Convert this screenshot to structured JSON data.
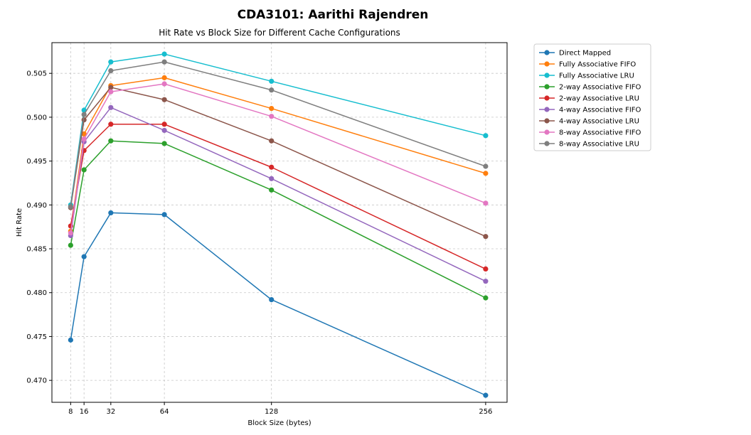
{
  "chart_data": {
    "type": "line",
    "title": "CDA3101: Aarithi Rajendren",
    "subtitle": "Hit Rate vs Block Size for Different Cache Configurations",
    "xlabel": "Block Size (bytes)",
    "ylabel": "Hit Rate",
    "x": [
      8,
      16,
      32,
      64,
      128,
      256
    ],
    "x_ticks": [
      "8",
      "16",
      "32",
      "64",
      "128",
      "256"
    ],
    "xlim": [
      -3.2,
      268.8
    ],
    "ylim": [
      0.4675,
      0.5085
    ],
    "y_ticks": [
      "0.470",
      "0.475",
      "0.480",
      "0.485",
      "0.490",
      "0.495",
      "0.500",
      "0.505"
    ],
    "y_tick_values": [
      0.47,
      0.475,
      0.48,
      0.485,
      0.49,
      0.495,
      0.5,
      0.505
    ],
    "grid": true,
    "legend_position": "outside-top-right",
    "series": [
      {
        "name": "Direct Mapped",
        "color": "#1f77b4",
        "values": [
          0.4746,
          0.4841,
          0.4891,
          0.4889,
          0.4792,
          0.4683
        ]
      },
      {
        "name": "Fully Associative FIFO",
        "color": "#ff7f0e",
        "values": [
          0.487,
          0.4981,
          0.5036,
          0.5045,
          0.501,
          0.4936
        ]
      },
      {
        "name": "Fully Associative LRU",
        "color": "#17becf",
        "values": [
          0.49,
          0.5008,
          0.5063,
          0.5072,
          0.5041,
          0.4979
        ]
      },
      {
        "name": "2-way Associative FIFO",
        "color": "#2ca02c",
        "values": [
          0.4854,
          0.494,
          0.4973,
          0.497,
          0.4917,
          0.4794
        ]
      },
      {
        "name": "2-way Associative LRU",
        "color": "#d62728",
        "values": [
          0.4876,
          0.4962,
          0.4992,
          0.4992,
          0.4943,
          0.4827
        ]
      },
      {
        "name": "4-way Associative FIFO",
        "color": "#9467bd",
        "values": [
          0.4865,
          0.4972,
          0.5011,
          0.4985,
          0.493,
          0.4813
        ]
      },
      {
        "name": "4-way Associative LRU",
        "color": "#8c564b",
        "values": [
          0.4897,
          0.4997,
          0.5034,
          0.502,
          0.4973,
          0.4864
        ]
      },
      {
        "name": "8-way Associative FIFO",
        "color": "#e377c2",
        "values": [
          0.4868,
          0.4975,
          0.5029,
          0.5038,
          0.5001,
          0.4902
        ]
      },
      {
        "name": "8-way Associative LRU",
        "color": "#7f7f7f",
        "values": [
          0.4898,
          0.5003,
          0.5053,
          0.5063,
          0.5031,
          0.4944
        ]
      }
    ]
  }
}
